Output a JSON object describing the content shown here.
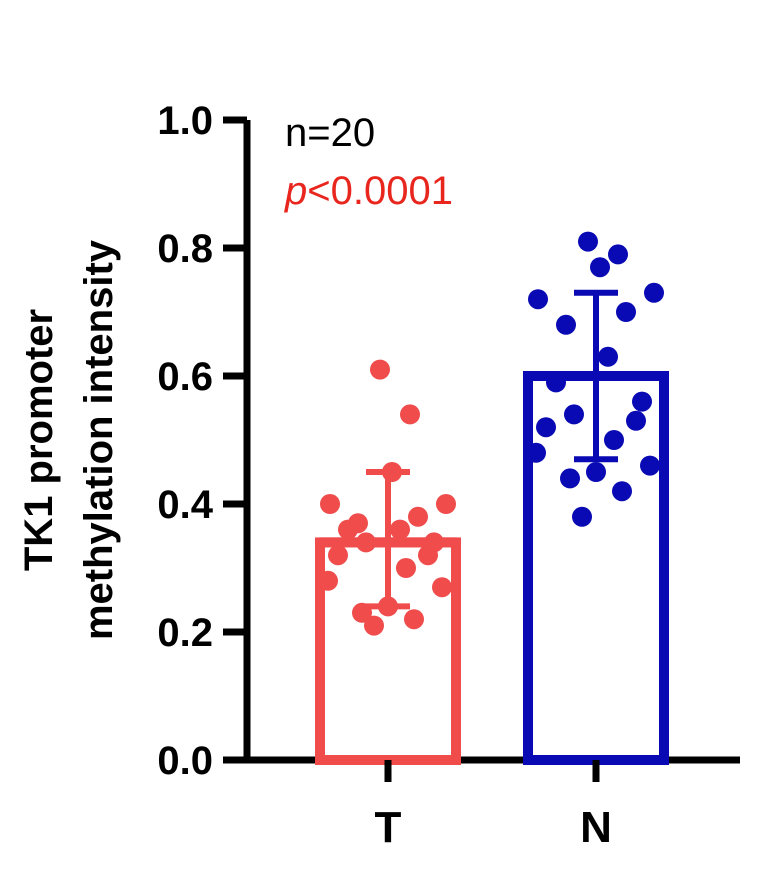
{
  "chart_data": {
    "type": "bar",
    "title": "",
    "ylabel_lines": [
      "TK1 promoter",
      "methylation intensity"
    ],
    "xlabel": "",
    "ylim": [
      0,
      1.0
    ],
    "y_ticks": [
      "0.0",
      "0.2",
      "0.4",
      "0.6",
      "0.8",
      "1.0"
    ],
    "y_tick_values": [
      0,
      0.2,
      0.4,
      0.6,
      0.8,
      1.0
    ],
    "categories": [
      "T",
      "N"
    ],
    "bars": [
      {
        "category": "T",
        "mean": 0.34,
        "sd_low": 0.24,
        "sd_high": 0.45,
        "color": "#f04c4c",
        "points": [
          0.61,
          0.54,
          0.45,
          0.4,
          0.4,
          0.38,
          0.37,
          0.36,
          0.36,
          0.34,
          0.34,
          0.32,
          0.32,
          0.3,
          0.28,
          0.27,
          0.24,
          0.23,
          0.22,
          0.21
        ]
      },
      {
        "category": "N",
        "mean": 0.6,
        "sd_low": 0.47,
        "sd_high": 0.73,
        "color": "#0a0ab4",
        "points": [
          0.81,
          0.79,
          0.77,
          0.73,
          0.72,
          0.7,
          0.68,
          0.63,
          0.59,
          0.56,
          0.54,
          0.53,
          0.52,
          0.5,
          0.48,
          0.46,
          0.45,
          0.44,
          0.42,
          0.38
        ]
      }
    ],
    "annotations": [
      {
        "text": "n=20",
        "color": "#000000",
        "italic_prefix": ""
      },
      {
        "text": "<0.0001",
        "color": "#e8261e",
        "italic_prefix": "p"
      }
    ]
  }
}
